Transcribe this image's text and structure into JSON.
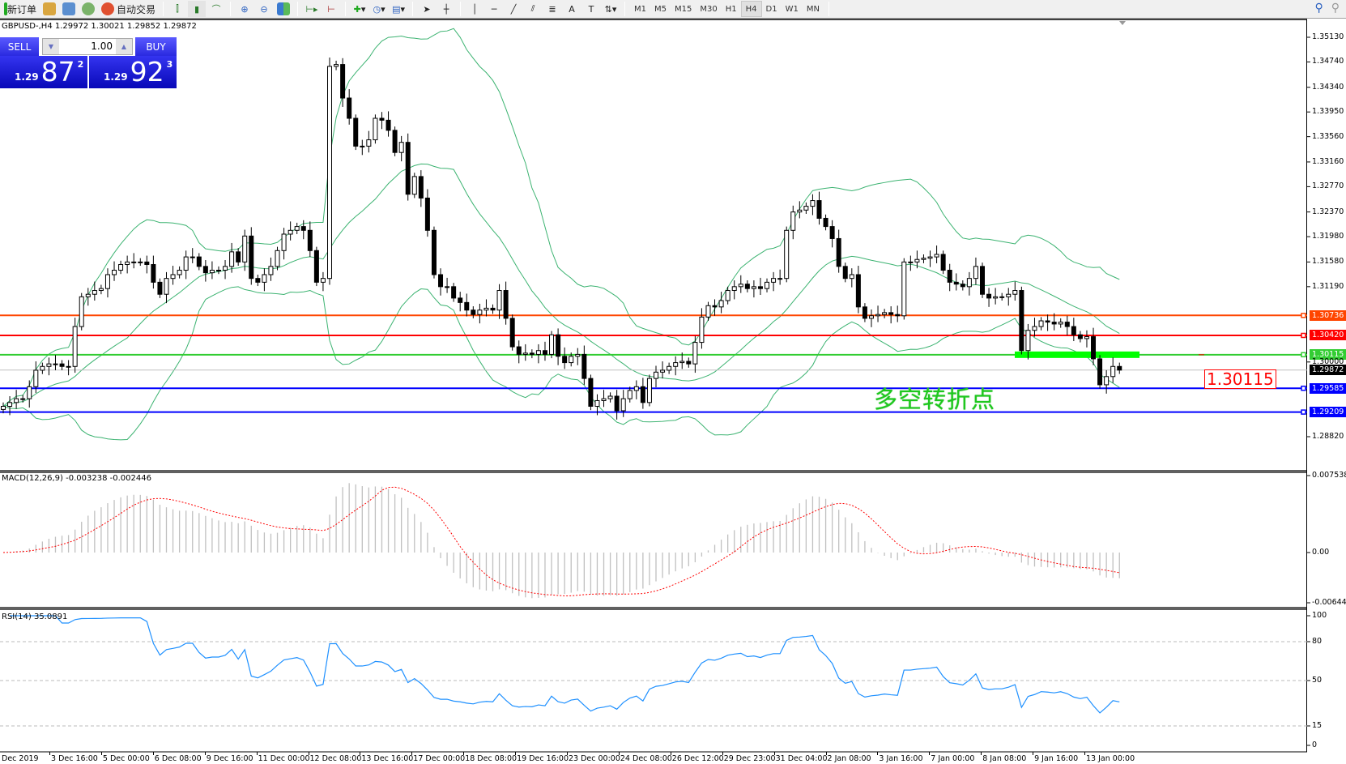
{
  "toolbar": {
    "new_order": "新订单",
    "auto_trading": "自动交易",
    "icons": [
      "new-order-icon",
      "market-watch-icon",
      "navigator-icon",
      "signals-icon",
      "auto-trading-icon",
      "bar-chart-icon",
      "candlestick-icon",
      "line-chart-icon",
      "zoom-in-icon",
      "zoom-out-icon",
      "tile-windows-icon",
      "auto-scroll-icon",
      "chart-shift-icon",
      "indicators-icon",
      "periods-icon",
      "templates-icon",
      "cursor-icon",
      "crosshair-icon",
      "vertical-line-icon",
      "horizontal-line-icon",
      "trendline-icon",
      "equidistant-channel-icon",
      "fibonacci-icon",
      "text-icon",
      "text-label-icon",
      "arrows-icon"
    ],
    "timeframes": [
      "M1",
      "M5",
      "M15",
      "M30",
      "H1",
      "H4",
      "D1",
      "W1",
      "MN"
    ],
    "active_timeframe": "H4"
  },
  "chart": {
    "symbol_line": "GBPUSD-,H4  1.29972 1.30021 1.29852 1.29872",
    "macd_title": "MACD(12,26,9) -0.003238 -0.002446",
    "rsi_title": "RSI(14) 35.0891",
    "pivot_text": "多空转折点",
    "pivot_label": "1.30115"
  },
  "trade_panel": {
    "sell": "SELL",
    "buy": "BUY",
    "lot": "1.00",
    "sell_price": {
      "prefix": "1.29",
      "big": "87",
      "sup": "2"
    },
    "buy_price": {
      "prefix": "1.29",
      "big": "92",
      "sup": "3"
    }
  },
  "price_axis": [
    "1.35130",
    "1.34740",
    "1.34340",
    "1.33950",
    "1.33560",
    "1.33160",
    "1.32770",
    "1.32370",
    "1.31980",
    "1.31580",
    "1.31190",
    "1.30000",
    "1.28820"
  ],
  "macd_axis": [
    "0.007538",
    "0.00",
    "-0.006446"
  ],
  "rsi_axis": [
    "100",
    "80",
    "50",
    "15",
    "0"
  ],
  "horizontal_lines": [
    {
      "price": "1.30736",
      "color": "#ff4500"
    },
    {
      "price": "1.30420",
      "color": "#ff0000"
    },
    {
      "price": "1.30115",
      "color": "#32cd32"
    },
    {
      "price": "1.29872",
      "color": "#000000"
    },
    {
      "price": "1.29585",
      "color": "#0000ff"
    },
    {
      "price": "1.29209",
      "color": "#0000ff"
    }
  ],
  "time_axis": [
    "Dec 2019",
    "3 Dec 16:00",
    "5 Dec 00:00",
    "6 Dec 08:00",
    "9 Dec 16:00",
    "11 Dec 00:00",
    "12 Dec 08:00",
    "13 Dec 16:00",
    "17 Dec 00:00",
    "18 Dec 08:00",
    "19 Dec 16:00",
    "23 Dec 00:00",
    "24 Dec 08:00",
    "26 Dec 12:00",
    "29 Dec 23:00",
    "31 Dec 04:00",
    "2 Jan 08:00",
    "3 Jan 16:00",
    "7 Jan 00:00",
    "8 Jan 08:00",
    "9 Jan 16:00",
    "13 Jan 00:00"
  ],
  "chart_data": {
    "type": "candlestick",
    "symbol": "GBPUSD-",
    "timeframe": "H4",
    "ylim": [
      1.2882,
      1.3513
    ],
    "indicators": [
      "Bollinger Bands(20,2)",
      "MACD(12,26,9)",
      "RSI(14)"
    ],
    "rsi_levels": [
      80,
      50,
      15
    ],
    "colors": {
      "bands": "#3cb371",
      "macd_hist": "#c0c0c0",
      "macd_signal": "#ff0000",
      "rsi": "#1e90ff",
      "pivot": "#00ff00"
    },
    "first_open": 1.2925,
    "closes": [
      1.293,
      1.2936,
      1.2942,
      1.2942,
      1.2961,
      1.2987,
      1.2993,
      1.2997,
      1.2997,
      1.2993,
      1.2993,
      1.3056,
      1.3103,
      1.3107,
      1.3113,
      1.3116,
      1.3138,
      1.3145,
      1.3154,
      1.3158,
      1.3158,
      1.3158,
      1.3154,
      1.3126,
      1.3107,
      1.3132,
      1.3138,
      1.3145,
      1.3166,
      1.3166,
      1.3151,
      1.3141,
      1.3145,
      1.3145,
      1.3151,
      1.3174,
      1.3158,
      1.3199,
      1.3132,
      1.3126,
      1.3138,
      1.3151,
      1.3176,
      1.3202,
      1.3208,
      1.3214,
      1.3208,
      1.3176,
      1.3126,
      1.3132,
      1.3467,
      1.347,
      1.3417,
      1.3385,
      1.3341,
      1.3341,
      1.3351,
      1.3385,
      1.3382,
      1.3366,
      1.3331,
      1.3347,
      1.3265,
      1.3293,
      1.3259,
      1.3208,
      1.3138,
      1.3119,
      1.3119,
      1.3101,
      1.3094,
      1.3082,
      1.3075,
      1.3082,
      1.3085,
      1.3082,
      1.3113,
      1.3069,
      1.3024,
      1.3012,
      1.3014,
      1.3012,
      1.3018,
      1.3012,
      1.3043,
      1.3009,
      1.2999,
      1.3009,
      1.3012,
      1.2974,
      1.293,
      1.2939,
      1.2942,
      1.2946,
      1.2923,
      1.2942,
      1.2955,
      1.2961,
      1.2936,
      1.2974,
      1.2984,
      1.2987,
      1.2993,
      1.2999,
      1.3001,
      1.2997,
      1.3031,
      1.3071,
      1.3089,
      1.3087,
      1.3097,
      1.3113,
      1.3119,
      1.3123,
      1.3116,
      1.3119,
      1.3116,
      1.3126,
      1.3132,
      1.3132,
      1.3208,
      1.3237,
      1.324,
      1.3246,
      1.3255,
      1.3227,
      1.3214,
      1.3195,
      1.3151,
      1.3132,
      1.3138,
      1.3087,
      1.3069,
      1.3073,
      1.3075,
      1.3078,
      1.3075,
      1.3073,
      1.3158,
      1.3158,
      1.3162,
      1.3164,
      1.3166,
      1.317,
      1.3145,
      1.3126,
      1.3123,
      1.3119,
      1.3132,
      1.3151,
      1.3107,
      1.3101,
      1.3103,
      1.3103,
      1.3107,
      1.3113,
      1.3018,
      1.305,
      1.3056,
      1.3065,
      1.3063,
      1.306,
      1.3063,
      1.3056,
      1.3043,
      1.3037,
      1.304,
      1.3005,
      1.2964,
      1.2977,
      1.2993,
      1.29872
    ]
  }
}
